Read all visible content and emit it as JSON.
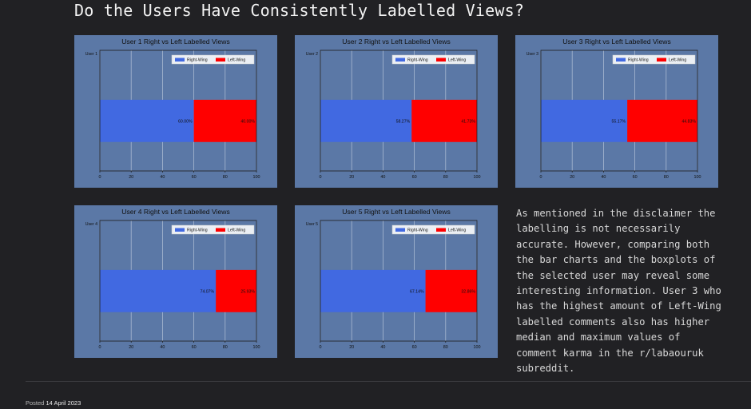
{
  "page": {
    "heading": "Do the Users Have Consistently Labelled Views?",
    "description": "As mentioned in the disclaimer the labelling is not necessarily accurate. However, comparing both the bar charts and the boxplots of the selected user may reveal some interesting information. User 3 who has the highest amount of Left-Wing labelled comments also has higher median and maximum values of comment karma in the r/labaouruk subreddit.",
    "footer": {
      "posted_label": "Posted",
      "date": "14 April 2023"
    }
  },
  "colors": {
    "right": "#4169e1",
    "left": "#ff0000",
    "panel": "#5b78a6",
    "background": "#212124"
  },
  "chart_data": [
    {
      "type": "bar",
      "orientation": "horizontal",
      "stacked": true,
      "title": "User 1 Right vs Left Labelled Views",
      "categories": [
        "User 1"
      ],
      "series": [
        {
          "name": "Right-Wing",
          "values": [
            60.0
          ],
          "label": "60.00%"
        },
        {
          "name": "Left-Wing",
          "values": [
            40.0
          ],
          "label": "40.00%"
        }
      ],
      "xlim": [
        0,
        100
      ],
      "xticks": [
        "0",
        "20",
        "40",
        "60",
        "80",
        "100"
      ],
      "grid": true,
      "legend": "top-right"
    },
    {
      "type": "bar",
      "orientation": "horizontal",
      "stacked": true,
      "title": "User 2 Right vs Left Labelled Views",
      "categories": [
        "User 2"
      ],
      "series": [
        {
          "name": "Right-Wing",
          "values": [
            58.27
          ],
          "label": "58.27%"
        },
        {
          "name": "Left-Wing",
          "values": [
            41.73
          ],
          "label": "41.73%"
        }
      ],
      "xlim": [
        0,
        100
      ],
      "xticks": [
        "0",
        "20",
        "40",
        "60",
        "80",
        "100"
      ],
      "grid": true,
      "legend": "top-right"
    },
    {
      "type": "bar",
      "orientation": "horizontal",
      "stacked": true,
      "title": "User 3 Right vs Left Labelled Views",
      "categories": [
        "User 3"
      ],
      "series": [
        {
          "name": "Right-Wing",
          "values": [
            55.17
          ],
          "label": "55.17%"
        },
        {
          "name": "Left-Wing",
          "values": [
            44.83
          ],
          "label": "44.83%"
        }
      ],
      "xlim": [
        0,
        100
      ],
      "xticks": [
        "0",
        "20",
        "40",
        "60",
        "80",
        "100"
      ],
      "grid": true,
      "legend": "top-right"
    },
    {
      "type": "bar",
      "orientation": "horizontal",
      "stacked": true,
      "title": "User 4 Right vs Left Labelled Views",
      "categories": [
        "User 4"
      ],
      "series": [
        {
          "name": "Right-Wing",
          "values": [
            74.07
          ],
          "label": "74.07%"
        },
        {
          "name": "Left-Wing",
          "values": [
            25.93
          ],
          "label": "25.93%"
        }
      ],
      "xlim": [
        0,
        100
      ],
      "xticks": [
        "0",
        "20",
        "40",
        "60",
        "80",
        "100"
      ],
      "grid": true,
      "legend": "top-right"
    },
    {
      "type": "bar",
      "orientation": "horizontal",
      "stacked": true,
      "title": "User 5 Right vs Left Labelled Views",
      "categories": [
        "User 5"
      ],
      "series": [
        {
          "name": "Right-Wing",
          "values": [
            67.14
          ],
          "label": "67.14%"
        },
        {
          "name": "Left-Wing",
          "values": [
            32.86
          ],
          "label": "32.86%"
        }
      ],
      "xlim": [
        0,
        100
      ],
      "xticks": [
        "0",
        "20",
        "40",
        "60",
        "80",
        "100"
      ],
      "grid": true,
      "legend": "top-right"
    }
  ]
}
